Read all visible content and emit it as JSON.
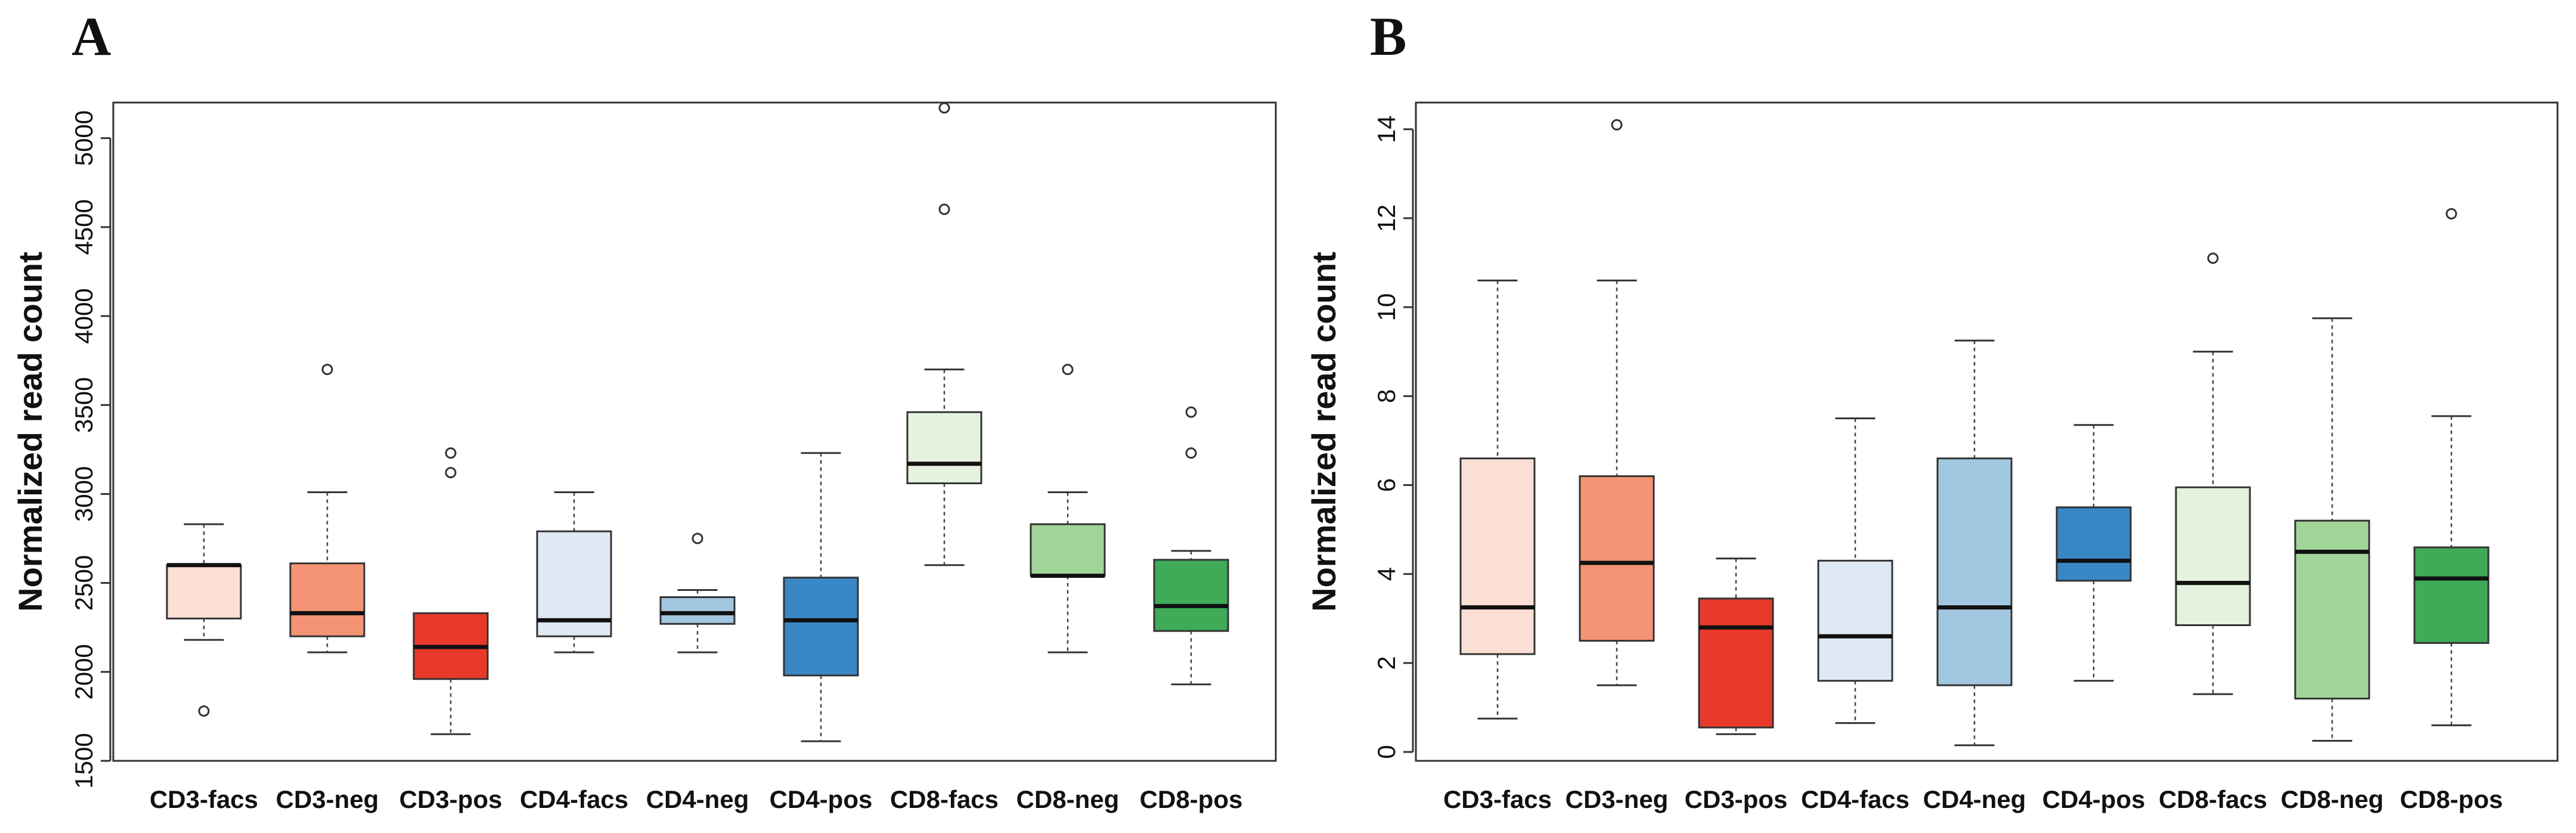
{
  "panels": {
    "A": {
      "label": "A"
    },
    "B": {
      "label": "B"
    }
  },
  "chart_data": [
    {
      "type": "box",
      "panel": "A",
      "ylabel": "Normalized read count",
      "ylim": [
        1500,
        5200
      ],
      "yticks": [
        1500,
        2000,
        2500,
        3000,
        3500,
        4000,
        4500,
        5000
      ],
      "categories": [
        "CD3-facs",
        "CD3-neg",
        "CD3-pos",
        "CD4-facs",
        "CD4-neg",
        "CD4-pos",
        "CD8-facs",
        "CD8-neg",
        "CD8-pos"
      ],
      "colors": [
        "#fcdfd4",
        "#f49474",
        "#e8392b",
        "#dfe9f5",
        "#a2c7e0",
        "#3a87c6",
        "#e5f3de",
        "#a1d597",
        "#3faa58"
      ],
      "boxes": [
        {
          "min": 2180,
          "q1": 2300,
          "median": 2600,
          "q3": 2600,
          "max": 2830,
          "outliers": [
            1780
          ]
        },
        {
          "min": 2110,
          "q1": 2200,
          "median": 2330,
          "q3": 2610,
          "max": 3010,
          "outliers": [
            3700
          ]
        },
        {
          "min": 1650,
          "q1": 1960,
          "median": 2140,
          "q3": 2330,
          "max": 2330,
          "outliers": [
            3120,
            3230
          ]
        },
        {
          "min": 2110,
          "q1": 2200,
          "median": 2290,
          "q3": 2790,
          "max": 3010,
          "outliers": []
        },
        {
          "min": 2110,
          "q1": 2270,
          "median": 2330,
          "q3": 2420,
          "max": 2460,
          "outliers": [
            2750
          ]
        },
        {
          "min": 1610,
          "q1": 1980,
          "median": 2290,
          "q3": 2530,
          "max": 3230,
          "outliers": []
        },
        {
          "min": 2600,
          "q1": 3060,
          "median": 3170,
          "q3": 3460,
          "max": 3700,
          "outliers": [
            4600,
            5170
          ]
        },
        {
          "min": 2110,
          "q1": 2540,
          "median": 2540,
          "q3": 2830,
          "max": 3010,
          "outliers": [
            3700
          ]
        },
        {
          "min": 1930,
          "q1": 2230,
          "median": 2370,
          "q3": 2630,
          "max": 2680,
          "outliers": [
            3230,
            3460
          ]
        }
      ]
    },
    {
      "type": "box",
      "panel": "B",
      "ylabel": "Normalized read count",
      "ylim": [
        -0.2,
        14.6
      ],
      "yticks": [
        0,
        2,
        4,
        6,
        8,
        10,
        12,
        14
      ],
      "categories": [
        "CD3-facs",
        "CD3-neg",
        "CD3-pos",
        "CD4-facs",
        "CD4-neg",
        "CD4-pos",
        "CD8-facs",
        "CD8-neg",
        "CD8-pos"
      ],
      "colors": [
        "#fcdfd4",
        "#f49474",
        "#e8392b",
        "#dfe9f5",
        "#a2c7e0",
        "#3a87c6",
        "#e5f3de",
        "#a1d597",
        "#3faa58"
      ],
      "boxes": [
        {
          "min": 0.75,
          "q1": 2.2,
          "median": 3.25,
          "q3": 6.6,
          "max": 10.6,
          "outliers": []
        },
        {
          "min": 1.5,
          "q1": 2.5,
          "median": 4.25,
          "q3": 6.2,
          "max": 10.6,
          "outliers": [
            14.1
          ]
        },
        {
          "min": 0.4,
          "q1": 0.55,
          "median": 2.8,
          "q3": 3.45,
          "max": 4.35,
          "outliers": []
        },
        {
          "min": 0.65,
          "q1": 1.6,
          "median": 2.6,
          "q3": 4.3,
          "max": 7.5,
          "outliers": []
        },
        {
          "min": 0.15,
          "q1": 1.5,
          "median": 3.25,
          "q3": 6.6,
          "max": 9.25,
          "outliers": []
        },
        {
          "min": 1.6,
          "q1": 3.85,
          "median": 4.3,
          "q3": 5.5,
          "max": 7.35,
          "outliers": []
        },
        {
          "min": 1.3,
          "q1": 2.85,
          "median": 3.8,
          "q3": 5.95,
          "max": 9.0,
          "outliers": [
            11.1
          ]
        },
        {
          "min": 0.25,
          "q1": 1.2,
          "median": 4.5,
          "q3": 5.2,
          "max": 9.75,
          "outliers": []
        },
        {
          "min": 0.6,
          "q1": 2.45,
          "median": 3.9,
          "q3": 4.6,
          "max": 7.55,
          "outliers": [
            12.1
          ]
        }
      ]
    }
  ]
}
